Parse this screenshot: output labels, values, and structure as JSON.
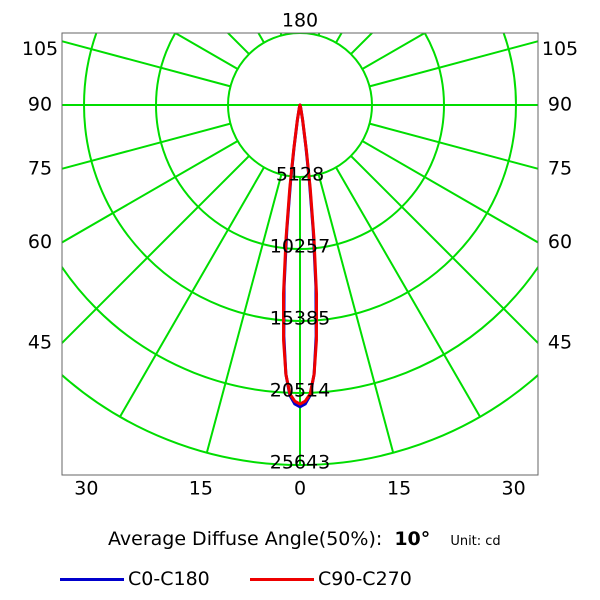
{
  "chart_data": {
    "type": "polar",
    "max_intensity": 25643,
    "ring_labels": [
      "5128",
      "10257",
      "15385",
      "20514",
      "25643"
    ],
    "ring_values": [
      5128,
      10257,
      15385,
      20514,
      25643
    ],
    "angle_labels_side": [
      "105",
      "90",
      "75",
      "60",
      "45"
    ],
    "angle_labels_side_values": [
      105,
      90,
      75,
      60,
      45
    ],
    "angle_labels_bottom": [
      "30",
      "15",
      "0",
      "15",
      "30"
    ],
    "angle_labels_bottom_values": [
      -30,
      -15,
      0,
      15,
      30
    ],
    "top_label": "180",
    "series": [
      {
        "name": "C0-C180",
        "color": "#0000cc",
        "points": [
          {
            "angle": 0,
            "intensity": 21500
          },
          {
            "angle": 1,
            "intensity": 21300
          },
          {
            "angle": 2,
            "intensity": 20700
          },
          {
            "angle": 3,
            "intensity": 19200
          },
          {
            "angle": 4,
            "intensity": 16500
          },
          {
            "angle": 5,
            "intensity": 13000
          },
          {
            "angle": 6,
            "intensity": 9000
          },
          {
            "angle": 7,
            "intensity": 5500
          },
          {
            "angle": 8,
            "intensity": 3000
          },
          {
            "angle": 10,
            "intensity": 1000
          },
          {
            "angle": 15,
            "intensity": 150
          },
          {
            "angle": 30,
            "intensity": 0
          },
          {
            "angle": 90,
            "intensity": 0
          },
          {
            "angle": 180,
            "intensity": 0
          }
        ]
      },
      {
        "name": "C90-C270",
        "color": "#ee0000",
        "points": [
          {
            "angle": 0,
            "intensity": 21300
          },
          {
            "angle": 1,
            "intensity": 21100
          },
          {
            "angle": 2,
            "intensity": 20600
          },
          {
            "angle": 3,
            "intensity": 19200
          },
          {
            "angle": 4,
            "intensity": 16800
          },
          {
            "angle": 5,
            "intensity": 13500
          },
          {
            "angle": 6,
            "intensity": 9500
          },
          {
            "angle": 7,
            "intensity": 6000
          },
          {
            "angle": 8,
            "intensity": 3300
          },
          {
            "angle": 10,
            "intensity": 1100
          },
          {
            "angle": 15,
            "intensity": 150
          },
          {
            "angle": 30,
            "intensity": 0
          },
          {
            "angle": 90,
            "intensity": 0
          },
          {
            "angle": 180,
            "intensity": 0
          }
        ]
      }
    ],
    "grid": true,
    "grid_color": "#00dd00"
  },
  "footer": {
    "avg_label": "Average Diffuse Angle(50%):",
    "avg_value": "10°",
    "unit": "Unit: cd"
  },
  "legend": {
    "items": [
      {
        "label": "C0-C180",
        "color": "#0000cc"
      },
      {
        "label": "C90-C270",
        "color": "#ee0000"
      }
    ]
  }
}
